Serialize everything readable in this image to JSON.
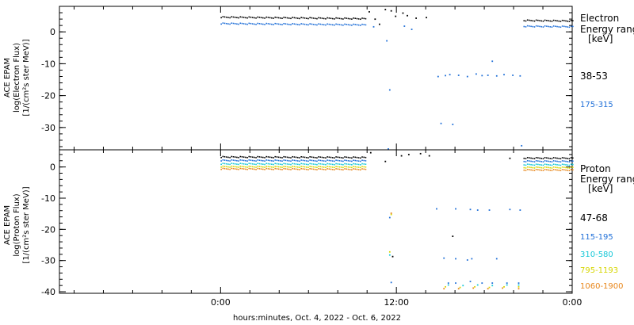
{
  "chart_data": [
    {
      "type": "scatter",
      "panel": "electron",
      "ylabel_lines": [
        "ACE EPAM",
        "log(Electron Flux)",
        "[1/(cm²s ster MeV)]"
      ],
      "ylim": [
        -37,
        8
      ],
      "yticks": [
        0,
        -10,
        -20,
        -30
      ],
      "xlim_hours": [
        -11,
        24
      ],
      "legend_title_lines": [
        "Electron",
        "Energy range",
        "[keV]"
      ],
      "series": [
        {
          "name": "38-53",
          "color": "#000000",
          "baseline": {
            "x_start": 0,
            "x_end": 24,
            "y_start": 4.8,
            "y_end": 3.6
          },
          "points": [
            [
              10.1,
              6.5
            ],
            [
              10.5,
              4.2
            ],
            [
              10.8,
              2.6
            ],
            [
              11.2,
              7.2
            ],
            [
              11.6,
              6.8
            ],
            [
              11.9,
              5.1
            ],
            [
              12.4,
              6.1
            ],
            [
              12.7,
              5.3
            ],
            [
              13.3,
              4.5
            ],
            [
              14.0,
              4.7
            ]
          ]
        },
        {
          "name": "175-315",
          "color": "#1f6fd8",
          "baseline": {
            "x_start": 0,
            "x_end": 24,
            "y_start": 2.8,
            "y_end": 1.8
          },
          "points": [
            [
              10.4,
              1.8
            ],
            [
              11.3,
              -2.6
            ],
            [
              11.5,
              -18.0
            ],
            [
              11.4,
              -36.5
            ],
            [
              12.5,
              2.0
            ],
            [
              13.0,
              1.0
            ],
            [
              14.8,
              -13.8
            ],
            [
              15.3,
              -13.5
            ],
            [
              15.6,
              -13.2
            ],
            [
              16.2,
              -13.4
            ],
            [
              16.8,
              -13.8
            ],
            [
              17.4,
              -13.0
            ],
            [
              17.8,
              -13.5
            ],
            [
              18.2,
              -13.4
            ],
            [
              18.5,
              -9.0
            ],
            [
              18.8,
              -13.6
            ],
            [
              19.3,
              -13.2
            ],
            [
              19.9,
              -13.4
            ],
            [
              20.4,
              -13.6
            ],
            [
              15.0,
              -28.5
            ],
            [
              15.8,
              -28.8
            ],
            [
              20.5,
              -35.5
            ]
          ]
        }
      ]
    },
    {
      "type": "scatter",
      "panel": "proton",
      "ylabel_lines": [
        "ACE EPAM",
        "log(Proton Flux)",
        "[1/(cm²s ster MeV)]"
      ],
      "ylim": [
        -40.5,
        5.5
      ],
      "yticks": [
        0,
        -10,
        -20,
        -30,
        -40
      ],
      "xlim_hours": [
        -11,
        24
      ],
      "legend_title_lines": [
        "Proton",
        "Energy range",
        "[keV]"
      ],
      "x_tick_labels": [
        "0:00",
        "12:00",
        "0:00"
      ],
      "xlabel": "hours:minutes, Oct.  4, 2022 - Oct.  6, 2022",
      "series": [
        {
          "name": "47-68",
          "color": "#000000",
          "baseline": {
            "x_start": 0,
            "x_end": 24,
            "y_start": 3.4,
            "y_end": 3.0
          },
          "points": [
            [
              10.2,
              4.8
            ],
            [
              11.2,
              2.0
            ],
            [
              12.3,
              3.8
            ],
            [
              12.8,
              4.2
            ],
            [
              13.6,
              4.5
            ],
            [
              14.2,
              3.8
            ],
            [
              11.7,
              -28.5
            ],
            [
              15.8,
              -22.0
            ],
            [
              19.7,
              3.0
            ]
          ]
        },
        {
          "name": "115-195",
          "color": "#1f6fd8",
          "baseline": {
            "x_start": 0,
            "x_end": 24,
            "y_start": 2.3,
            "y_end": 2.0
          },
          "points": [
            [
              11.5,
              -16.0
            ],
            [
              14.7,
              -13.2
            ],
            [
              16.0,
              -13.2
            ],
            [
              17.0,
              -13.4
            ],
            [
              17.5,
              -13.6
            ],
            [
              18.3,
              -13.6
            ],
            [
              19.7,
              -13.4
            ],
            [
              20.4,
              -13.6
            ],
            [
              15.2,
              -29.0
            ],
            [
              16.0,
              -29.2
            ],
            [
              17.1,
              -29.2
            ],
            [
              16.8,
              -29.6
            ],
            [
              18.8,
              -29.2
            ],
            [
              11.6,
              -36.8
            ],
            [
              15.5,
              -37.0
            ],
            [
              16.0,
              -37.0
            ],
            [
              17.0,
              -36.5
            ],
            [
              17.8,
              -37.0
            ],
            [
              18.5,
              -37.0
            ],
            [
              19.5,
              -37.0
            ],
            [
              20.3,
              -37.0
            ]
          ]
        },
        {
          "name": "310-580",
          "color": "#18c8d8",
          "baseline": {
            "x_start": 0,
            "x_end": 24,
            "y_start": 1.2,
            "y_end": 0.9
          },
          "points": [
            [
              11.5,
              -28.0
            ],
            [
              15.5,
              -37.6
            ],
            [
              16.5,
              -37.8
            ],
            [
              17.5,
              -37.6
            ],
            [
              18.5,
              -37.8
            ],
            [
              19.5,
              -37.6
            ],
            [
              20.3,
              -37.6
            ]
          ]
        },
        {
          "name": "795-1193",
          "color": "#d6d600",
          "baseline": {
            "x_start": 0,
            "x_end": 24,
            "y_start": 0.3,
            "y_end": 0.0
          },
          "points": [
            [
              11.6,
              -15.0
            ],
            [
              11.5,
              -27.0
            ],
            [
              15.3,
              -38.2
            ],
            [
              16.3,
              -38.4
            ],
            [
              17.3,
              -38.2
            ],
            [
              18.3,
              -38.4
            ],
            [
              19.3,
              -38.2
            ],
            [
              20.3,
              -38.2
            ]
          ]
        },
        {
          "name": "1060-1900",
          "color": "#e8861a",
          "baseline": {
            "x_start": 0,
            "x_end": 24,
            "y_start": -0.4,
            "y_end": -0.8
          },
          "points": [
            [
              11.6,
              -14.6
            ],
            [
              15.2,
              -38.8
            ],
            [
              16.2,
              -38.8
            ],
            [
              17.2,
              -38.6
            ],
            [
              18.2,
              -38.8
            ],
            [
              19.2,
              -38.6
            ],
            [
              20.3,
              -38.8
            ]
          ]
        }
      ]
    }
  ]
}
